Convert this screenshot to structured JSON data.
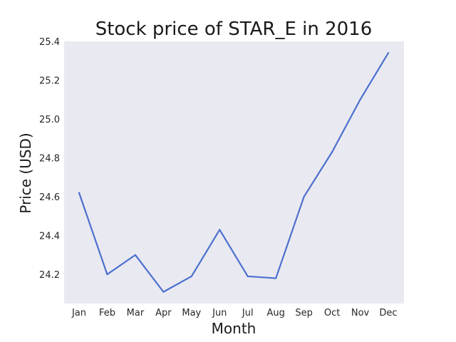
{
  "chart_data": {
    "type": "line",
    "title": "Stock price of STAR_E in 2016",
    "xlabel": "Month",
    "ylabel": "Price (USD)",
    "categories": [
      "Jan",
      "Feb",
      "Mar",
      "Apr",
      "May",
      "Jun",
      "Jul",
      "Aug",
      "Sep",
      "Oct",
      "Nov",
      "Dec"
    ],
    "series": [
      {
        "values": [
          24.62,
          24.2,
          24.3,
          24.11,
          24.19,
          24.43,
          24.19,
          24.18,
          24.6,
          24.83,
          25.1,
          25.34
        ]
      }
    ],
    "ylim": [
      24.05,
      25.4
    ],
    "yticks": [
      "24.2",
      "24.4",
      "24.6",
      "24.8",
      "25.0",
      "25.2",
      "25.4"
    ],
    "grid": false,
    "legend": "none",
    "colors": {
      "line": "#4c6fcf",
      "plot_background": "#e9e9f1"
    }
  }
}
